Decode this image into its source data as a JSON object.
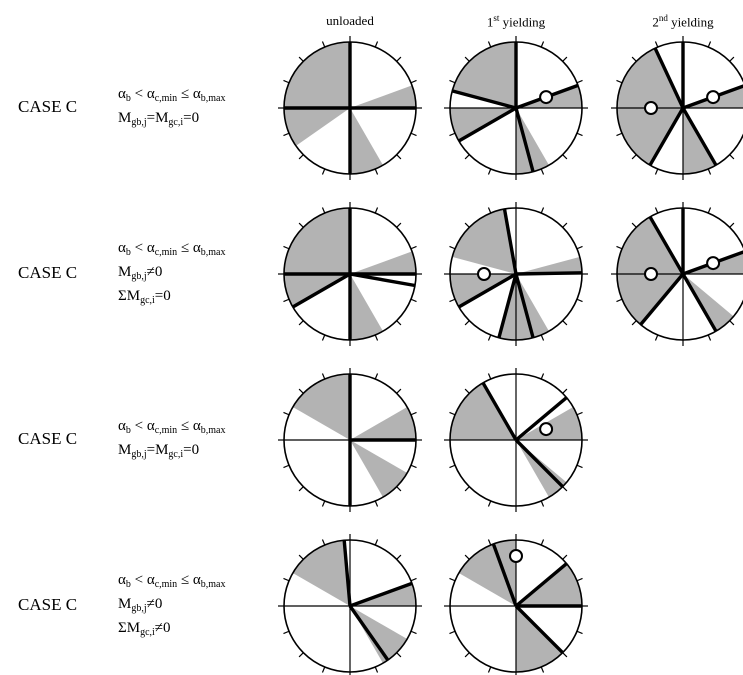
{
  "column_headers": [
    {
      "main": "unloaded",
      "sup": "",
      "tail": ""
    },
    {
      "main": "1",
      "sup": "st",
      "tail": " yielding"
    },
    {
      "main": "2",
      "sup": "nd",
      "tail": " yielding"
    }
  ],
  "rows": [
    {
      "case": "CASE C",
      "conditions": [
        [
          {
            "t": "α"
          },
          {
            "s": "b"
          },
          {
            "t": " < α"
          },
          {
            "s": "c,min"
          },
          {
            "t": " ≤ α"
          },
          {
            "s": "b,max"
          }
        ],
        [
          {
            "t": "M"
          },
          {
            "s": "gb,j"
          },
          {
            "t": "=M"
          },
          {
            "s": "gc,i"
          },
          {
            "t": "=0"
          }
        ]
      ]
    },
    {
      "case": "CASE C",
      "conditions": [
        [
          {
            "t": "α"
          },
          {
            "s": "b"
          },
          {
            "t": " < α"
          },
          {
            "s": "c,min"
          },
          {
            "t": " ≤ α"
          },
          {
            "s": "b,max"
          }
        ],
        [
          {
            "t": "M"
          },
          {
            "s": "gb,j"
          },
          {
            "t": "≠0"
          }
        ],
        [
          {
            "t": "ΣM"
          },
          {
            "s": "gc,i"
          },
          {
            "t": "=0"
          }
        ]
      ]
    },
    {
      "case": "CASE C",
      "conditions": [
        [
          {
            "t": "α"
          },
          {
            "s": "b"
          },
          {
            "t": " < α"
          },
          {
            "s": "c,min"
          },
          {
            "t": " ≤ α"
          },
          {
            "s": "b,max"
          }
        ],
        [
          {
            "t": "M"
          },
          {
            "s": "gb,j"
          },
          {
            "t": "=M"
          },
          {
            "s": "gc,i"
          },
          {
            "t": "=0"
          }
        ]
      ]
    },
    {
      "case": "CASE C",
      "conditions": [
        [
          {
            "t": "α"
          },
          {
            "s": "b"
          },
          {
            "t": " < α"
          },
          {
            "s": "c,min"
          },
          {
            "t": " ≤ α"
          },
          {
            "s": "b,max"
          }
        ],
        [
          {
            "t": "M"
          },
          {
            "s": "gb,j"
          },
          {
            "t": "≠0"
          }
        ],
        [
          {
            "t": "ΣM"
          },
          {
            "s": "gc,i"
          },
          {
            "t": "≠0"
          }
        ]
      ]
    }
  ],
  "colors": {
    "sector_fill": "#b3b3b3",
    "line": "#000000"
  },
  "diagrams": [
    {
      "row": 0,
      "col": 0,
      "sectors": [
        [
          90,
          180
        ],
        [
          0,
          20
        ],
        [
          180,
          215
        ],
        [
          270,
          300
        ]
      ],
      "bars": [
        90,
        180,
        270,
        0
      ],
      "circles": []
    },
    {
      "row": 0,
      "col": 1,
      "sectors": [
        [
          90,
          165
        ],
        [
          0,
          20
        ],
        [
          180,
          210
        ],
        [
          270,
          300
        ]
      ],
      "bars": [
        90,
        165,
        20,
        210,
        285
      ],
      "circles": [
        [
          -20,
          22
        ]
      ]
    },
    {
      "row": 0,
      "col": 2,
      "sectors": [
        [
          115,
          180
        ],
        [
          0,
          20
        ],
        [
          180,
          240
        ],
        [
          270,
          300
        ]
      ],
      "bars": [
        90,
        115,
        20,
        240,
        300
      ],
      "circles": [
        [
          -20,
          22
        ],
        [
          -180,
          22
        ]
      ]
    },
    {
      "row": 1,
      "col": 0,
      "sectors": [
        [
          90,
          180
        ],
        [
          0,
          20
        ],
        [
          180,
          210
        ],
        [
          270,
          300
        ]
      ],
      "bars": [
        90,
        180,
        270,
        0,
        210,
        -10
      ],
      "circles": []
    },
    {
      "row": 1,
      "col": 1,
      "sectors": [
        [
          100,
          165
        ],
        [
          0,
          15
        ],
        [
          180,
          210
        ],
        [
          255,
          285
        ],
        [
          285,
          300
        ]
      ],
      "bars": [
        100,
        210,
        1,
        255,
        285
      ],
      "circles": [
        [
          -180,
          22
        ]
      ]
    },
    {
      "row": 1,
      "col": 2,
      "sectors": [
        [
          120,
          180
        ],
        [
          0,
          20
        ],
        [
          180,
          230
        ],
        [
          300,
          320
        ]
      ],
      "bars": [
        90,
        120,
        20,
        230,
        300
      ],
      "circles": [
        [
          -20,
          22
        ],
        [
          -180,
          22
        ]
      ]
    },
    {
      "row": 2,
      "col": 0,
      "sectors": [
        [
          90,
          150
        ],
        [
          0,
          30
        ],
        [
          300,
          330
        ]
      ],
      "bars": [
        90,
        0,
        270
      ],
      "circles": []
    },
    {
      "row": 2,
      "col": 1,
      "sectors": [
        [
          120,
          180
        ],
        [
          0,
          30
        ],
        [
          300,
          320
        ]
      ],
      "bars": [
        120,
        40,
        315
      ],
      "circles": [
        [
          -20,
          22
        ]
      ]
    },
    {
      "row": 3,
      "col": 0,
      "sectors": [
        [
          95,
          150
        ],
        [
          0,
          20
        ],
        [
          300,
          330
        ]
      ],
      "bars": [
        95,
        20,
        305
      ],
      "circles": []
    },
    {
      "row": 3,
      "col": 1,
      "sectors": [
        [
          90,
          150
        ],
        [
          0,
          40
        ],
        [
          270,
          315
        ]
      ],
      "bars": [
        110,
        40,
        0,
        315
      ],
      "circles": [
        [
          -90,
          40
        ]
      ]
    }
  ]
}
